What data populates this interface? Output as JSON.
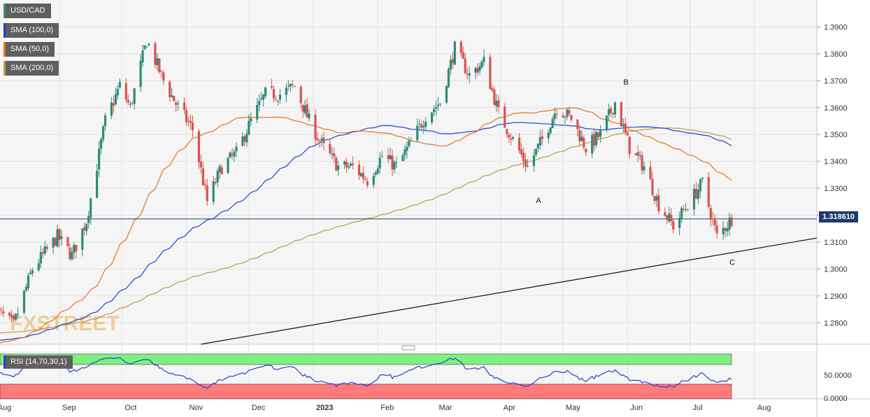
{
  "symbol": "USD/CAD",
  "legend": [
    {
      "label": "SMA (100,0)",
      "color": "#1f3fd6"
    },
    {
      "label": "SMA (50,0)",
      "color": "#e8701e"
    },
    {
      "label": "SMA (200,0)",
      "color": "#b5a03a"
    }
  ],
  "symbol_color": "#3e8f84",
  "watermark": "FXSTREET",
  "current_price_label": "1.318610",
  "rsi_label": "RSI (14,70,30,1)",
  "colors": {
    "up": "#2e8b7a",
    "down": "#d9534f",
    "rsi_line": "#2a3fd6",
    "overbought": "#7ff07f",
    "oversold": "#ff7a7a",
    "trendline": "#111111",
    "price_line": "#1f3a6b"
  },
  "chart_data": {
    "type": "candlestick",
    "y_ticks": [
      "1.3900",
      "1.3800",
      "1.3700",
      "1.3600",
      "1.3500",
      "1.3400",
      "1.3300",
      "1.3200",
      "1.3100",
      "1.3000",
      "1.2900",
      "1.2800"
    ],
    "ylim": [
      1.272,
      1.4
    ],
    "x_ticks": [
      "Aug",
      "Sep",
      "Oct",
      "Nov",
      "Dec",
      "2023",
      "Feb",
      "Mar",
      "Apr",
      "May",
      "Jun",
      "Jul",
      "Aug"
    ],
    "x_ticks_bold": [
      "2023"
    ],
    "rsi_ticks": [
      "50.0000",
      "0.0000"
    ],
    "current_price": 1.31861,
    "annotations": [
      {
        "text": "A",
        "date": "2023-04-18",
        "y": 1.3245
      },
      {
        "text": "B",
        "date": "2023-05-30",
        "y": 1.3685
      },
      {
        "text": "C",
        "date": "2023-07-20",
        "y": 1.3015
      }
    ],
    "trendline": {
      "from": [
        "2022-11-08",
        1.272
      ],
      "to": [
        "2023-08-31",
        1.3115
      ]
    },
    "close_anchors": [
      [
        "2022-08-01",
        1.285
      ],
      [
        "2022-08-10",
        1.279
      ],
      [
        "2022-08-19",
        1.3
      ],
      [
        "2022-08-31",
        1.312
      ],
      [
        "2022-09-07",
        1.305
      ],
      [
        "2022-09-14",
        1.318
      ],
      [
        "2022-09-23",
        1.355
      ],
      [
        "2022-09-30",
        1.368
      ],
      [
        "2022-10-05",
        1.36
      ],
      [
        "2022-10-13",
        1.385
      ],
      [
        "2022-10-21",
        1.37
      ],
      [
        "2022-10-28",
        1.36
      ],
      [
        "2022-11-04",
        1.352
      ],
      [
        "2022-11-11",
        1.325
      ],
      [
        "2022-11-18",
        1.338
      ],
      [
        "2022-11-25",
        1.343
      ],
      [
        "2022-12-02",
        1.355
      ],
      [
        "2022-12-09",
        1.365
      ],
      [
        "2022-12-16",
        1.365
      ],
      [
        "2022-12-23",
        1.368
      ],
      [
        "2022-12-30",
        1.355
      ],
      [
        "2023-01-06",
        1.345
      ],
      [
        "2023-01-13",
        1.338
      ],
      [
        "2023-01-20",
        1.338
      ],
      [
        "2023-01-27",
        1.333
      ],
      [
        "2023-02-03",
        1.342
      ],
      [
        "2023-02-10",
        1.338
      ],
      [
        "2023-02-17",
        1.347
      ],
      [
        "2023-02-24",
        1.357
      ],
      [
        "2023-03-03",
        1.362
      ],
      [
        "2023-03-10",
        1.382
      ],
      [
        "2023-03-17",
        1.372
      ],
      [
        "2023-03-24",
        1.377
      ],
      [
        "2023-03-31",
        1.358
      ],
      [
        "2023-04-07",
        1.348
      ],
      [
        "2023-04-14",
        1.338
      ],
      [
        "2023-04-21",
        1.348
      ],
      [
        "2023-04-28",
        1.36
      ],
      [
        "2023-05-05",
        1.356
      ],
      [
        "2023-05-12",
        1.345
      ],
      [
        "2023-05-19",
        1.35
      ],
      [
        "2023-05-26",
        1.362
      ],
      [
        "2023-06-02",
        1.345
      ],
      [
        "2023-06-09",
        1.338
      ],
      [
        "2023-06-16",
        1.324
      ],
      [
        "2023-06-23",
        1.316
      ],
      [
        "2023-06-30",
        1.324
      ],
      [
        "2023-07-07",
        1.332
      ],
      [
        "2023-07-14",
        1.312
      ],
      [
        "2023-07-21",
        1.3186
      ]
    ]
  }
}
